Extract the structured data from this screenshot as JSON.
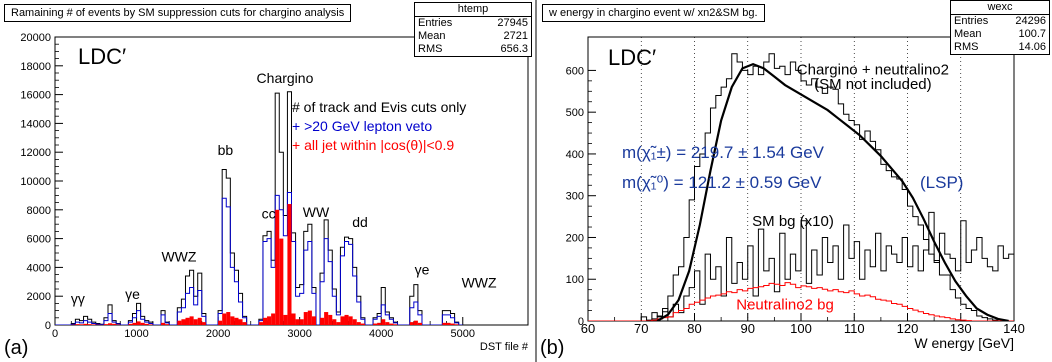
{
  "chart_data": [
    {
      "type": "histogram",
      "panel_label": "(a)",
      "title": "Ramaining # of events by SM suppression cuts for chargino analysis",
      "stats": {
        "name": "htemp",
        "entries": "27945",
        "mean": "2721",
        "rms": "656.3"
      },
      "xlabel": "DST file #",
      "xlim": [
        0,
        5800
      ],
      "ylim": [
        0,
        20000
      ],
      "x_ticks": [
        "0",
        "1000",
        "2000",
        "3000",
        "4000",
        "5000"
      ],
      "y_ticks": [
        "0",
        "2000",
        "4000",
        "6000",
        "8000",
        "10000",
        "12000",
        "14000",
        "16000",
        "18000",
        "20000"
      ],
      "logo": "LDC′",
      "legend": [
        {
          "label": "# of track and Evis cuts only",
          "color": "#000000"
        },
        {
          "label": "+ >20 GeV lepton veto",
          "color": "#0000cc"
        },
        {
          "label": "+ all jet within |cos(θ)|<0.9",
          "color": "#ff0000"
        }
      ],
      "annotations": [
        {
          "text": "γγ",
          "x": 280,
          "y": 1500
        },
        {
          "text": "γe",
          "x": 950,
          "y": 1800
        },
        {
          "text": "WWZ",
          "x": 1520,
          "y": 4400
        },
        {
          "text": "bb",
          "x": 2090,
          "y": 11800
        },
        {
          "text": "Chargino",
          "x": 2820,
          "y": 16800
        },
        {
          "text": "cc",
          "x": 2620,
          "y": 7400
        },
        {
          "text": "WW",
          "x": 3200,
          "y": 7500
        },
        {
          "text": "dd",
          "x": 3740,
          "y": 6800
        },
        {
          "text": "γe",
          "x": 4500,
          "y": 3500
        },
        {
          "text": "WWZ",
          "x": 5200,
          "y": 2600
        }
      ],
      "series": [
        {
          "name": "# of track and Evis cuts only",
          "color": "#000000",
          "bin_width": 50,
          "x_start": 0,
          "values": [
            0,
            0,
            0,
            0,
            100,
            400,
            300,
            600,
            400,
            200,
            100,
            50,
            500,
            1400,
            300,
            100,
            0,
            0,
            300,
            800,
            1500,
            600,
            300,
            200,
            0,
            0,
            1000,
            200,
            0,
            0,
            1200,
            1800,
            3400,
            3800,
            2000,
            3600,
            800,
            0,
            0,
            0,
            1000,
            10800,
            10200,
            5000,
            3800,
            2200,
            600,
            0,
            0,
            0,
            400,
            6200,
            6500,
            4500,
            16100,
            12000,
            7600,
            16200,
            6400,
            2600,
            2800,
            6500,
            7000,
            2600,
            0,
            3600,
            7300,
            5200,
            2500,
            900,
            5400,
            6100,
            6000,
            4000,
            2000,
            500,
            0,
            0,
            500,
            800,
            2600,
            900,
            500,
            200,
            0,
            0,
            0,
            2000,
            2800,
            1000,
            0,
            0,
            0,
            0,
            0,
            1000,
            1000,
            800,
            200,
            0
          ]
        },
        {
          "name": "+ >20 GeV lepton veto",
          "color": "#0000cc",
          "bin_width": 50,
          "x_start": 0,
          "values": [
            0,
            0,
            0,
            0,
            50,
            200,
            150,
            300,
            200,
            100,
            50,
            30,
            300,
            800,
            200,
            80,
            0,
            0,
            200,
            500,
            1000,
            400,
            200,
            100,
            0,
            0,
            700,
            150,
            0,
            0,
            900,
            1200,
            2200,
            2600,
            1400,
            2400,
            600,
            0,
            0,
            0,
            800,
            8800,
            8200,
            4000,
            3000,
            1600,
            500,
            0,
            0,
            0,
            300,
            5800,
            6000,
            4000,
            9000,
            8000,
            6200,
            9200,
            5800,
            2000,
            2200,
            5200,
            5800,
            2200,
            0,
            3000,
            6000,
            4400,
            2000,
            700,
            4800,
            5800,
            5600,
            3400,
            1600,
            400,
            0,
            0,
            400,
            600,
            1400,
            700,
            400,
            150,
            0,
            0,
            0,
            1200,
            1600,
            700,
            0,
            0,
            0,
            0,
            0,
            700,
            700,
            500,
            150,
            0
          ]
        },
        {
          "name": "+ all jet within |cos(θ)|<0.9",
          "color": "#ff0000",
          "bin_width": 50,
          "x_start": 0,
          "values": [
            0,
            0,
            0,
            0,
            20,
            60,
            50,
            80,
            60,
            40,
            20,
            10,
            60,
            120,
            80,
            30,
            0,
            0,
            80,
            150,
            250,
            150,
            80,
            40,
            0,
            0,
            150,
            60,
            0,
            0,
            300,
            400,
            500,
            600,
            400,
            500,
            200,
            0,
            0,
            0,
            300,
            800,
            900,
            600,
            500,
            400,
            200,
            0,
            0,
            0,
            200,
            500,
            600,
            800,
            8000,
            6000,
            700,
            8400,
            800,
            400,
            400,
            900,
            1000,
            600,
            0,
            500,
            900,
            700,
            400,
            200,
            600,
            700,
            600,
            400,
            200,
            100,
            0,
            0,
            100,
            150,
            400,
            200,
            100,
            50,
            0,
            0,
            0,
            200,
            300,
            150,
            0,
            0,
            0,
            0,
            0,
            150,
            150,
            100,
            50,
            0
          ]
        }
      ]
    },
    {
      "type": "histogram",
      "panel_label": "(b)",
      "title": "w energy in chargino event w/ xn2&SM bg.",
      "stats": {
        "name": "wexc",
        "entries": "24296",
        "mean": "100.7",
        "rms": "14.06"
      },
      "xlabel": "W energy [GeV]",
      "xlim": [
        60,
        140
      ],
      "ylim": [
        0,
        680
      ],
      "x_ticks": [
        "60",
        "70",
        "80",
        "90",
        "100",
        "110",
        "120",
        "130",
        "140"
      ],
      "y_ticks": [
        "0",
        "100",
        "200",
        "300",
        "400",
        "500",
        "600"
      ],
      "logo": "LDC′",
      "annotations": [
        {
          "text": "Chargino + neutralino2",
          "x": 113.5,
          "y": 590
        },
        {
          "text": "(SM not included)",
          "x": 113.5,
          "y": 555
        },
        {
          "text": "SM bg (x10)",
          "x": 98.5,
          "y": 227
        },
        {
          "text": "Neutralino2 bg",
          "x": 97,
          "y": 28,
          "color": "#ff0000"
        }
      ],
      "formulas": [
        {
          "text": "m(χ̃₁±) = 219.7 ± 1.54 GeV",
          "color": "#1a3a9c"
        },
        {
          "text": "m(χ̃₁⁰) = 121.2 ± 0.59 GeV",
          "color": "#1a3a9c"
        },
        {
          "text": "(LSP)",
          "color": "#1a3a9c"
        }
      ],
      "series": [
        {
          "name": "Chargino + neutralino2",
          "color": "#000000",
          "bin_width": 1,
          "x_start": 60,
          "values": [
            0,
            0,
            0,
            0,
            0,
            0,
            0,
            0,
            0,
            0,
            0,
            2,
            5,
            12,
            22,
            60,
            110,
            130,
            200,
            290,
            370,
            400,
            450,
            510,
            540,
            560,
            580,
            640,
            620,
            600,
            590,
            610,
            590,
            620,
            640,
            605,
            610,
            590,
            620,
            600,
            575,
            565,
            580,
            560,
            545,
            560,
            555,
            520,
            495,
            480,
            470,
            435,
            455,
            430,
            410,
            375,
            360,
            345,
            340,
            315,
            275,
            250,
            230,
            195,
            160,
            145,
            110,
            110,
            75,
            55,
            40,
            30,
            25,
            12,
            8,
            5,
            2,
            0,
            0,
            0
          ]
        },
        {
          "name": "SM bg (x10)",
          "color": "#000000",
          "bin_width": 1,
          "x_start": 60,
          "values": [
            0,
            0,
            0,
            0,
            0,
            0,
            0,
            0,
            0,
            0,
            10,
            0,
            20,
            10,
            30,
            10,
            40,
            20,
            60,
            80,
            120,
            40,
            160,
            100,
            130,
            60,
            200,
            90,
            140,
            100,
            180,
            60,
            220,
            120,
            150,
            70,
            210,
            100,
            160,
            120,
            240,
            90,
            170,
            110,
            200,
            140,
            180,
            100,
            230,
            150,
            190,
            100,
            170,
            130,
            210,
            120,
            180,
            160,
            140,
            200,
            130,
            180,
            120,
            170,
            260,
            140,
            210,
            160,
            150,
            120,
            240,
            140,
            170,
            200,
            150,
            130,
            120,
            180,
            150,
            160
          ]
        },
        {
          "name": "Neutralino2 bg",
          "color": "#ff0000",
          "bin_width": 1,
          "x_start": 60,
          "values": [
            0,
            0,
            0,
            0,
            0,
            0,
            0,
            0,
            0,
            0,
            0,
            0,
            2,
            5,
            8,
            10,
            20,
            25,
            30,
            40,
            45,
            50,
            55,
            60,
            62,
            65,
            70,
            68,
            75,
            72,
            78,
            80,
            82,
            85,
            90,
            88,
            85,
            92,
            88,
            80,
            84,
            82,
            78,
            80,
            76,
            72,
            75,
            70,
            68,
            72,
            65,
            60,
            62,
            58,
            52,
            50,
            48,
            42,
            40,
            35,
            30,
            26,
            22,
            18,
            15,
            12,
            10,
            8,
            5,
            3,
            2,
            1,
            0,
            0,
            0,
            0,
            0,
            0,
            0,
            0
          ]
        },
        {
          "name": "fit",
          "type": "line",
          "color": "#000000",
          "x": [
            73,
            75,
            77,
            79,
            81,
            83,
            85,
            87,
            89,
            91,
            93,
            95,
            97,
            99,
            101,
            103,
            105,
            107,
            109,
            111,
            113,
            115,
            117,
            119,
            121,
            123,
            125,
            127,
            129,
            131,
            133,
            135,
            137,
            139
          ],
          "values": [
            0,
            15,
            50,
            120,
            230,
            360,
            480,
            560,
            605,
            615,
            605,
            585,
            565,
            550,
            535,
            520,
            505,
            485,
            465,
            445,
            420,
            395,
            365,
            335,
            295,
            245,
            190,
            140,
            95,
            60,
            30,
            15,
            5,
            0
          ]
        }
      ]
    }
  ]
}
